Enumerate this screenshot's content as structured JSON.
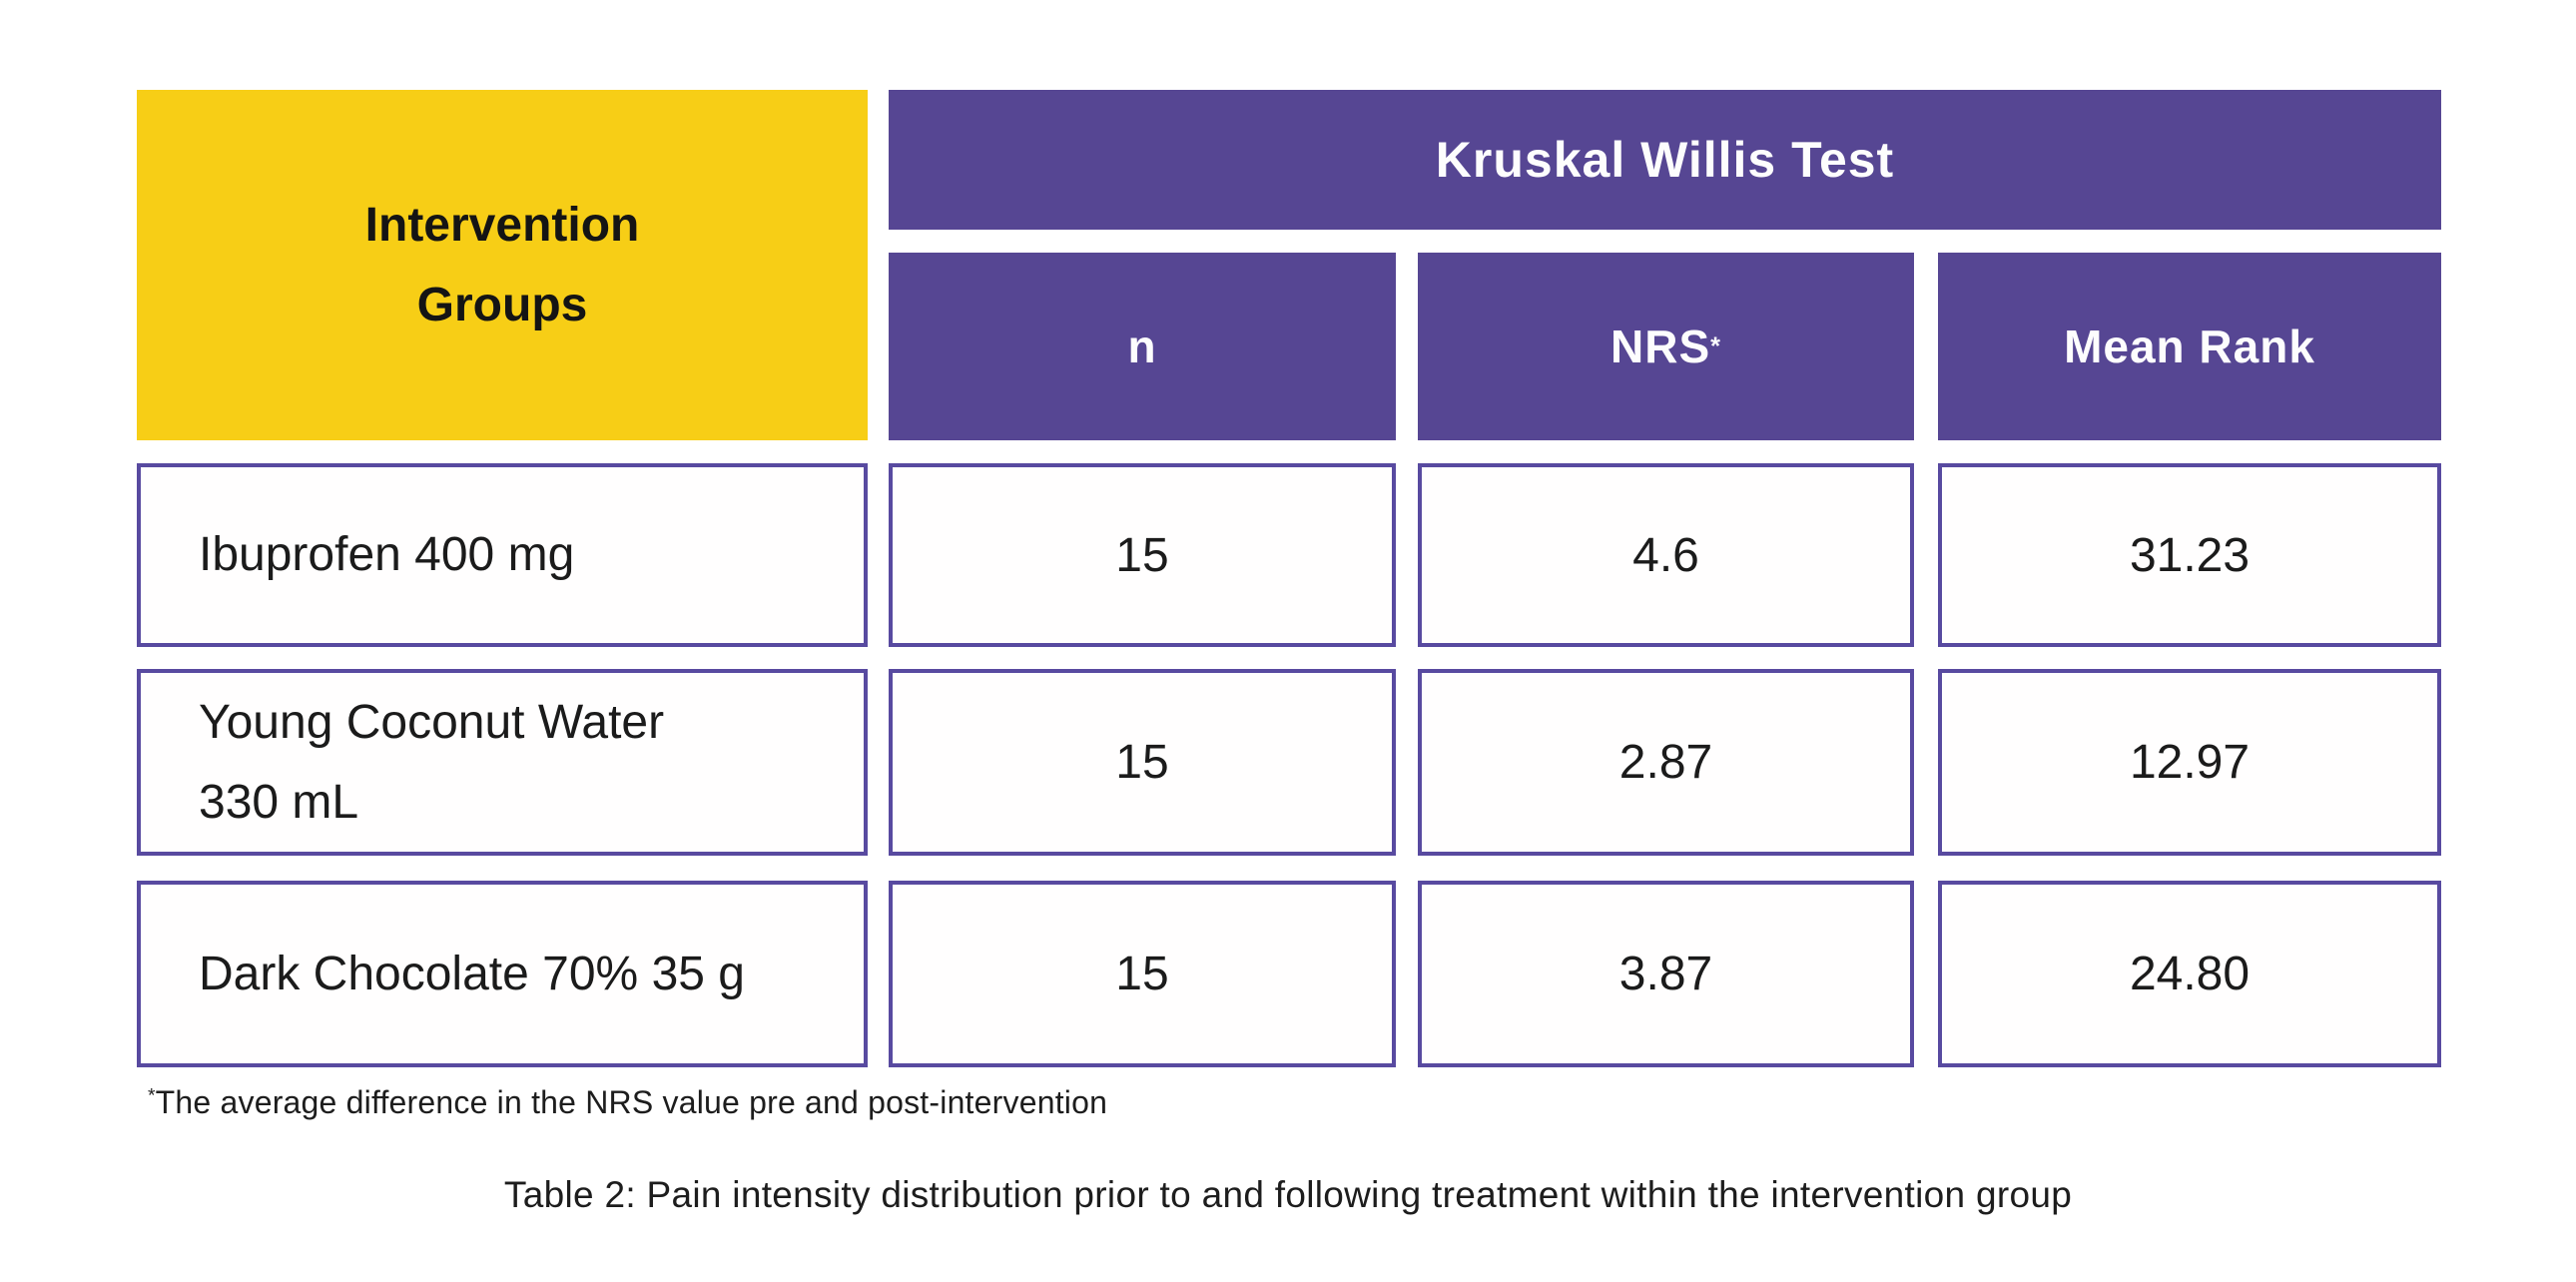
{
  "figure": {
    "corner_header": "Intervention\nGroups",
    "test_header": "Kruskal Willis Test",
    "columns": [
      {
        "label": "n",
        "sup": ""
      },
      {
        "label": "NRS",
        "sup": "*"
      },
      {
        "label": "Mean Rank",
        "sup": ""
      }
    ],
    "rows": [
      {
        "group": "Ibuprofen 400 mg",
        "n": "15",
        "nrs": "4.6",
        "mean_rank": "31.23"
      },
      {
        "group": "Young Coconut Water\n330 mL",
        "n": "15",
        "nrs": "2.87",
        "mean_rank": "12.97"
      },
      {
        "group": "Dark Chocolate 70% 35 g",
        "n": "15",
        "nrs": "3.87",
        "mean_rank": "24.80"
      }
    ],
    "footnote": {
      "marker": "*",
      "text": "The average difference in the NRS value pre and post-intervention"
    },
    "caption": "Table 2: Pain intensity distribution prior to and following treatment within the intervention group"
  },
  "colors": {
    "yellow": "#F7CE16",
    "purple": "#564693",
    "cell_border": "#584AA0",
    "text": "#1B1B1B"
  }
}
